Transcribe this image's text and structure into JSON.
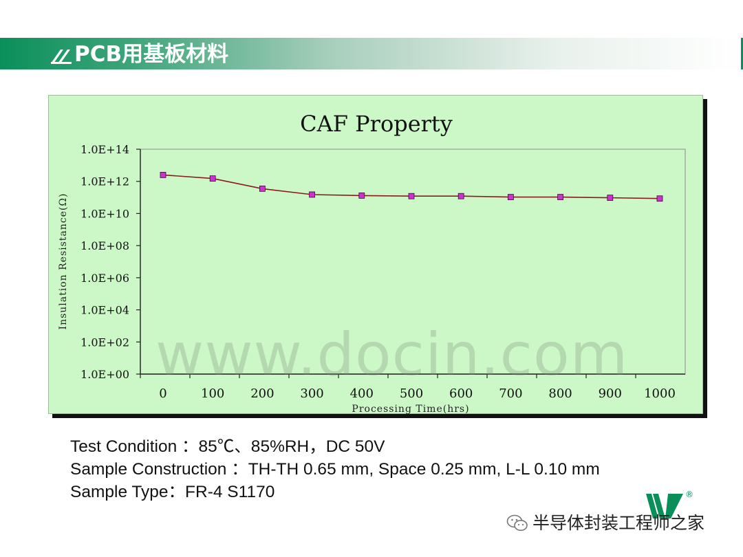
{
  "header": {
    "title": "PCB用基板材料",
    "accent_color": "#0a8f5a"
  },
  "chart_data": {
    "type": "line",
    "title": "CAF Property",
    "xlabel": "Processing Time(hrs)",
    "ylabel": "Insulation Resistance(Ω)",
    "categories": [
      "0",
      "100",
      "200",
      "300",
      "400",
      "500",
      "600",
      "700",
      "800",
      "900",
      "1000"
    ],
    "y_tick_labels": [
      "1.0E+00",
      "1.0E+02",
      "1.0E+04",
      "1.0E+06",
      "1.0E+08",
      "1.0E+10",
      "1.0E+12",
      "1.0E+14"
    ],
    "ylim": [
      1,
      100000000000000.0
    ],
    "yscale": "log",
    "grid": false,
    "legend": "none",
    "series": [
      {
        "values": [
          2500000000000.0,
          1500000000000.0,
          350000000000.0,
          150000000000.0,
          130000000000.0,
          120000000000.0,
          120000000000.0,
          105000000000.0,
          105000000000.0,
          95000000000.0,
          85000000000.0
        ],
        "line_color": "#8b1a1a",
        "marker_color": "#cc33cc"
      }
    ],
    "background_color": "#ccf7c6"
  },
  "watermark": "www.docin.com",
  "notes": [
    "Test Condition ：85℃、85%RH，DC 50V",
    "Sample Construction ：TH-TH 0.65 mm, Space 0.25 mm, L-L 0.10 mm",
    "Sample Type：FR-4 S1170"
  ],
  "footer": {
    "channel_name": "半导体封装工程师之家",
    "reg_mark": "®"
  }
}
